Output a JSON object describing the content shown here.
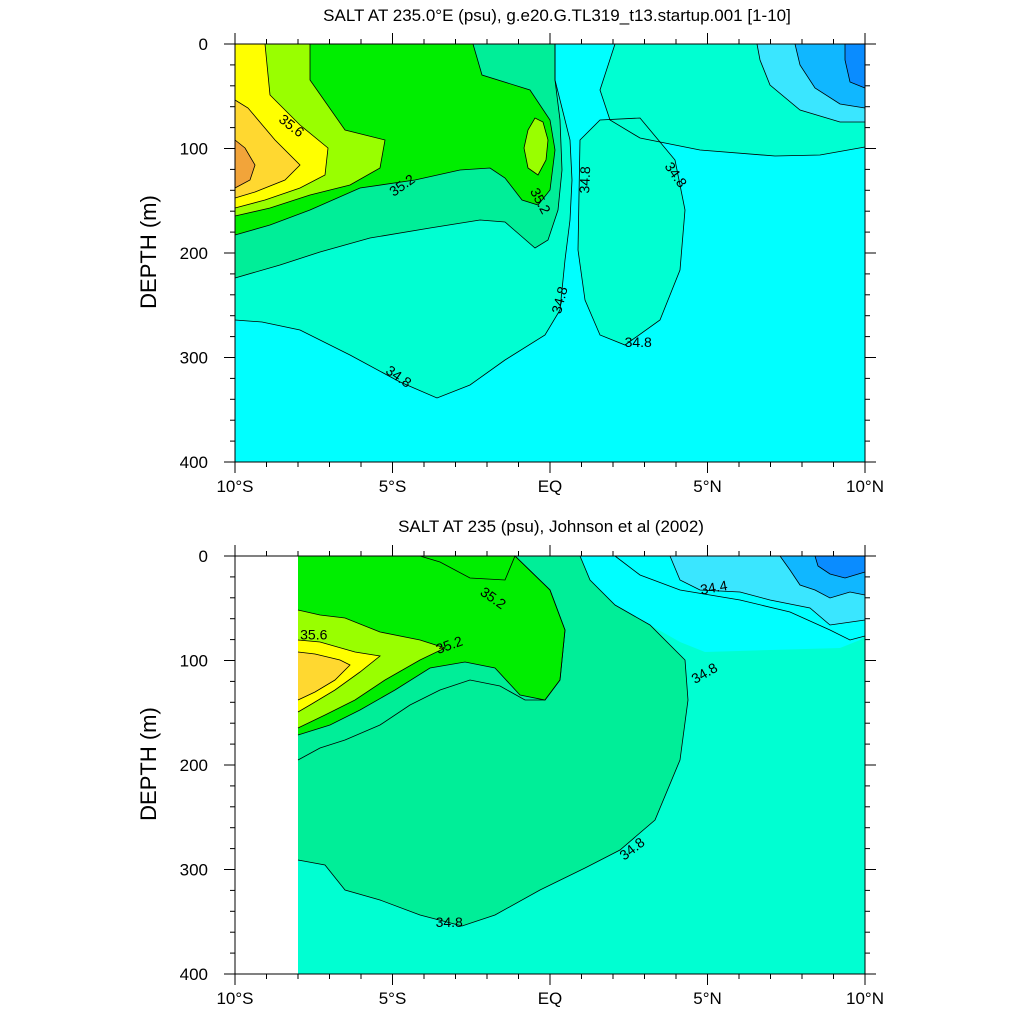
{
  "chart_data": [
    {
      "type": "contour",
      "title": "SALT AT 235.0°E (psu), g.e20.G.TL319_t13.startup.001 [1-10]",
      "ylabel": "DEPTH (m)",
      "xlabel": "",
      "x_range": [
        -10,
        10
      ],
      "y_range": [
        0,
        400
      ],
      "y_inverted": true,
      "x_ticks": [
        {
          "v": -10,
          "label": "10°S"
        },
        {
          "v": -5,
          "label": "5°S"
        },
        {
          "v": 0,
          "label": "EQ"
        },
        {
          "v": 5,
          "label": "5°N"
        },
        {
          "v": 10,
          "label": "10°N"
        }
      ],
      "y_ticks": [
        {
          "v": 0,
          "label": "0"
        },
        {
          "v": 100,
          "label": "100"
        },
        {
          "v": 200,
          "label": "200"
        },
        {
          "v": 300,
          "label": "300"
        },
        {
          "v": 400,
          "label": "400"
        }
      ],
      "data_start_lat": -10,
      "contour_interval": 0.2,
      "contour_labels": [
        {
          "text": "35.6",
          "lat": -8.2,
          "depth": 78,
          "angle": 38
        },
        {
          "text": "35.2",
          "lat": -4.7,
          "depth": 135,
          "angle": -35
        },
        {
          "text": "35.2",
          "lat": -0.3,
          "depth": 150,
          "angle": 62
        },
        {
          "text": "34.8",
          "lat": 1.1,
          "depth": 130,
          "angle": -88
        },
        {
          "text": "34.8",
          "lat": 4.0,
          "depth": 125,
          "angle": 55
        },
        {
          "text": "34.8",
          "lat": 0.3,
          "depth": 245,
          "angle": -75
        },
        {
          "text": "34.8",
          "lat": 2.8,
          "depth": 285,
          "angle": 0
        },
        {
          "text": "34.8",
          "lat": -4.8,
          "depth": 318,
          "angle": 35
        }
      ]
    },
    {
      "type": "contour",
      "title": "SALT AT 235 (psu), Johnson et al (2002)",
      "ylabel": "DEPTH (m)",
      "xlabel": "",
      "x_range": [
        -10,
        10
      ],
      "y_range": [
        0,
        400
      ],
      "y_inverted": true,
      "x_ticks": [
        {
          "v": -10,
          "label": "10°S"
        },
        {
          "v": -5,
          "label": "5°S"
        },
        {
          "v": 0,
          "label": "EQ"
        },
        {
          "v": 5,
          "label": "5°N"
        },
        {
          "v": 10,
          "label": "10°N"
        }
      ],
      "y_ticks": [
        {
          "v": 0,
          "label": "0"
        },
        {
          "v": 100,
          "label": "100"
        },
        {
          "v": 200,
          "label": "200"
        },
        {
          "v": 300,
          "label": "300"
        },
        {
          "v": 400,
          "label": "400"
        }
      ],
      "data_start_lat": -8,
      "contour_interval": 0.2,
      "contour_labels": [
        {
          "text": "35.2",
          "lat": -1.8,
          "depth": 40,
          "angle": 35
        },
        {
          "text": "35.6",
          "lat": -7.5,
          "depth": 75,
          "angle": 0
        },
        {
          "text": "35.2",
          "lat": -3.2,
          "depth": 85,
          "angle": -20
        },
        {
          "text": "34.4",
          "lat": 5.2,
          "depth": 30,
          "angle": -10
        },
        {
          "text": "34.8",
          "lat": 4.9,
          "depth": 112,
          "angle": -30
        },
        {
          "text": "34.8",
          "lat": 2.6,
          "depth": 280,
          "angle": -38
        },
        {
          "text": "34.8",
          "lat": -3.2,
          "depth": 350,
          "angle": 0
        }
      ]
    }
  ],
  "colors": {
    "c34_2": "#0a8cff",
    "c34_4": "#10b7ff",
    "c34_6": "#3ae6ff",
    "c34_8": "#00ffff",
    "c35_0": "#00ffd2",
    "c35_2": "#00ee98",
    "c35_4": "#00ee00",
    "c35_6": "#99ff00",
    "c35_8": "#ffff00",
    "c36_0": "#ffd830",
    "c36_2": "#f2a43a"
  }
}
